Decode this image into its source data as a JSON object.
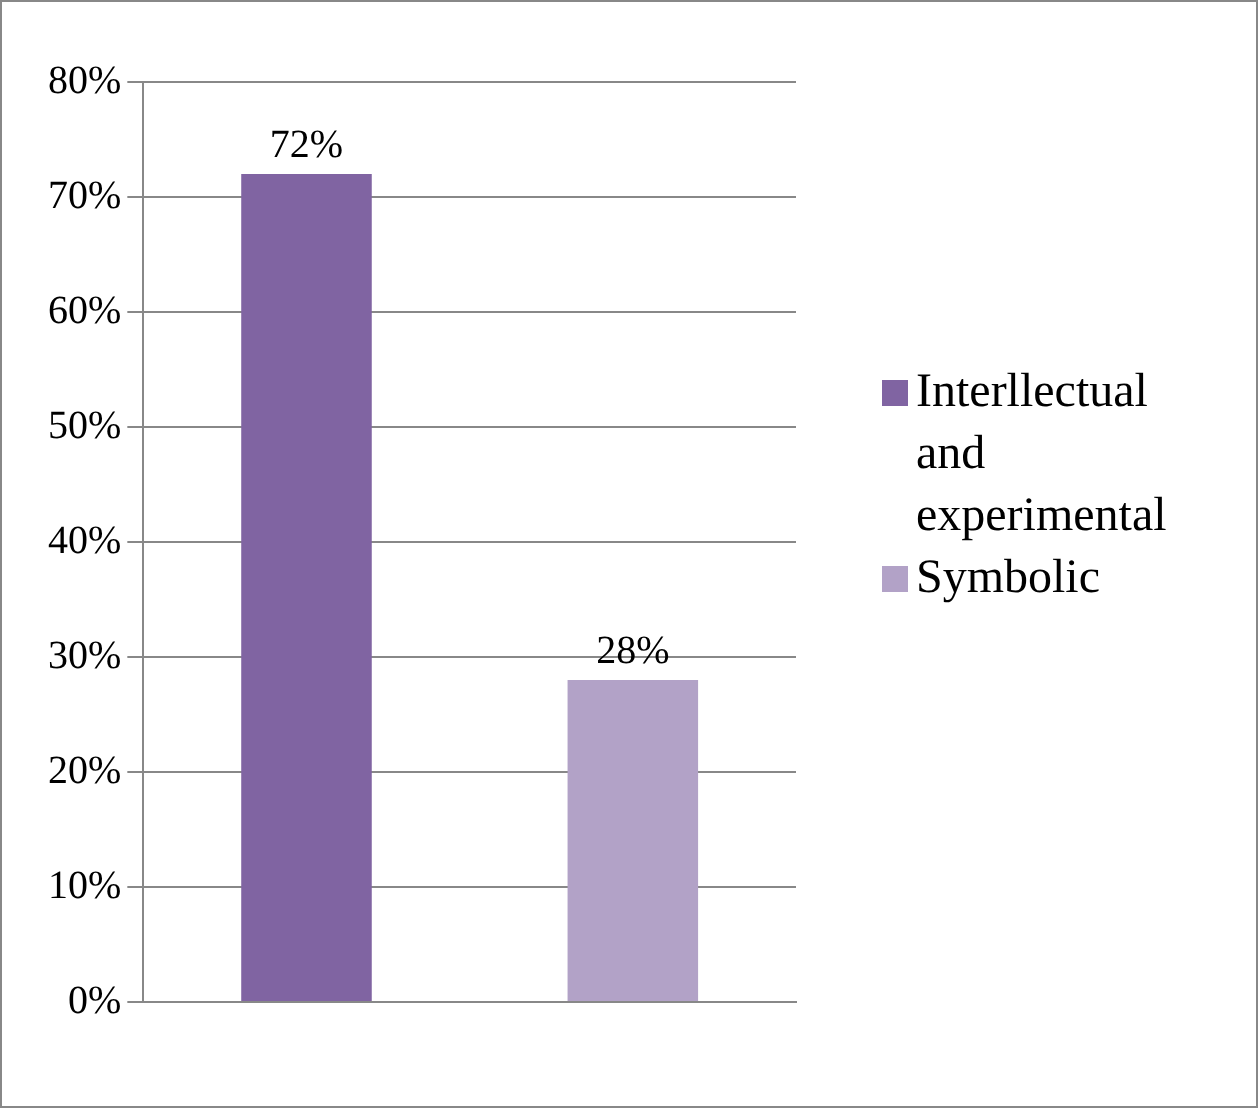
{
  "chart_data": {
    "type": "bar",
    "categories": [
      null
    ],
    "series": [
      {
        "name": "Interllectual and experimental",
        "color": "#8064a2",
        "values": [
          72
        ],
        "value_labels": [
          "72%"
        ]
      },
      {
        "name": "Symbolic",
        "color": "#b2a2c7",
        "values": [
          28
        ],
        "value_labels": [
          "28%"
        ]
      }
    ],
    "ylim": [
      0,
      80
    ],
    "yticks": [
      {
        "value": 0,
        "label": "0%"
      },
      {
        "value": 10,
        "label": "10%"
      },
      {
        "value": 20,
        "label": "20%"
      },
      {
        "value": 30,
        "label": "30%"
      },
      {
        "value": 40,
        "label": "40%"
      },
      {
        "value": 50,
        "label": "50%"
      },
      {
        "value": 60,
        "label": "60%"
      },
      {
        "value": 70,
        "label": "70%"
      },
      {
        "value": 80,
        "label": "80%"
      }
    ],
    "grid": "y",
    "legend": "right"
  }
}
